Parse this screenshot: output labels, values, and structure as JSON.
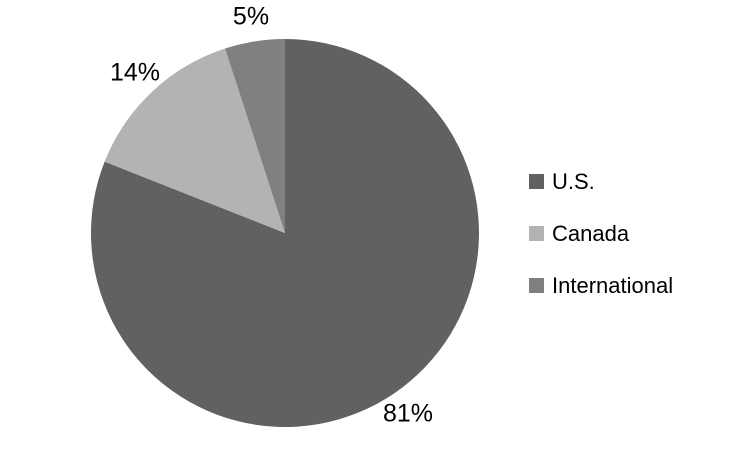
{
  "chart_data": {
    "type": "pie",
    "categories": [
      "U.S.",
      "Canada",
      "International"
    ],
    "values": [
      81,
      14,
      5
    ],
    "labels": [
      "81%",
      "14%",
      "5%"
    ],
    "colors": [
      "#616161",
      "#B3B3B3",
      "#808080"
    ],
    "label_position": "outside_end",
    "legend_position": "right",
    "start_angle_deg": 0,
    "direction": "clockwise",
    "background": "#FFFFFF",
    "text_color": "#000000"
  }
}
